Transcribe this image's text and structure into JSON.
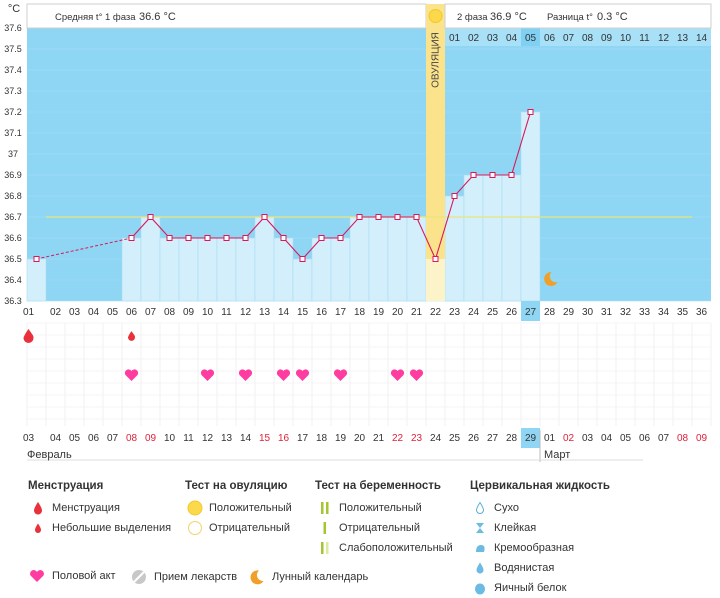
{
  "chart_data": {
    "type": "line",
    "unit_label": "°C",
    "ylim": [
      36.3,
      37.6
    ],
    "y_ticks": [
      "37.6",
      "37.5",
      "37.4",
      "37.3",
      "37.2",
      "37.1",
      "37",
      "36.9",
      "36.8",
      "36.7",
      "36.6",
      "36.5",
      "36.4",
      "36.3"
    ],
    "cycle_days": [
      "01",
      "02",
      "03",
      "04",
      "05",
      "06",
      "07",
      "08",
      "09",
      "10",
      "11",
      "12",
      "13",
      "14",
      "15",
      "16",
      "17",
      "18",
      "19",
      "20",
      "21",
      "22",
      "23",
      "24",
      "25",
      "26",
      "27",
      "28",
      "29",
      "30",
      "31",
      "32",
      "33",
      "34",
      "35",
      "36"
    ],
    "current_day": "27",
    "ovulation_day": 22,
    "ovulation_label": "ОВУЛЯЦИЯ",
    "post_ovulation_days": [
      "01",
      "02",
      "03",
      "04",
      "05",
      "06",
      "07",
      "08",
      "09",
      "10",
      "11",
      "12",
      "13",
      "14"
    ],
    "post_ovulation_current": "05",
    "temps": [
      36.5,
      null,
      null,
      null,
      null,
      36.6,
      36.7,
      36.6,
      36.6,
      36.6,
      36.6,
      36.6,
      36.7,
      36.6,
      36.5,
      36.6,
      36.6,
      36.7,
      36.7,
      36.7,
      36.7,
      36.5,
      36.8,
      36.9,
      36.9,
      36.9,
      37.2
    ],
    "coverline": 36.7,
    "phase1_label": "Средняя t° 1 фаза",
    "phase1_value": "36.6 °C",
    "phase2_label": "2 фаза",
    "phase2_value": "36.9 °C",
    "diff_label": "Разница t°",
    "diff_value": "0.3 °C",
    "menstruation_days": [
      1,
      6
    ],
    "menstruation_light_days": [
      6
    ],
    "intercourse_days": [
      6,
      10,
      12,
      14,
      15,
      17,
      20,
      21
    ],
    "moon_day": 28,
    "dates": [
      "03",
      "04",
      "05",
      "06",
      "07",
      "08",
      "09",
      "10",
      "11",
      "12",
      "13",
      "14",
      "15",
      "16",
      "17",
      "18",
      "19",
      "20",
      "21",
      "22",
      "23",
      "24",
      "25",
      "26",
      "27",
      "28",
      "29",
      "01",
      "02",
      "03",
      "04",
      "05",
      "06",
      "07",
      "08",
      "09"
    ],
    "dates_red_indices": [
      5,
      6,
      12,
      13,
      19,
      20,
      28,
      34,
      35
    ],
    "current_date": "29",
    "month1": "Февраль",
    "month2": "Март"
  },
  "legend": {
    "menstruation": {
      "title": "Менструация",
      "items": [
        "Менструация",
        "Небольшие выделения"
      ]
    },
    "ovulation_test": {
      "title": "Тест на овуляцию",
      "items": [
        "Положительный",
        "Отрицательный"
      ]
    },
    "pregnancy_test": {
      "title": "Тест на беременность",
      "items": [
        "Положительный",
        "Отрицательный",
        "Слабоположительный"
      ]
    },
    "cervical": {
      "title": "Цервикальная жидкость",
      "items": [
        "Сухо",
        "Клейкая",
        "Кремообразная",
        "Водянистая",
        "Яичный белок"
      ]
    },
    "bottom": [
      "Половой акт",
      "Прием лекарств",
      "Лунный календарь"
    ]
  },
  "colors": {
    "sky": "#8fd6f5",
    "fill": "#d3effc",
    "line": "#d9185b",
    "ovulation": "#fbe38c",
    "heart": "#ff3da0",
    "drop": "#e8313b",
    "coverline": "#e6e67a",
    "red_text": "#e0203a"
  }
}
